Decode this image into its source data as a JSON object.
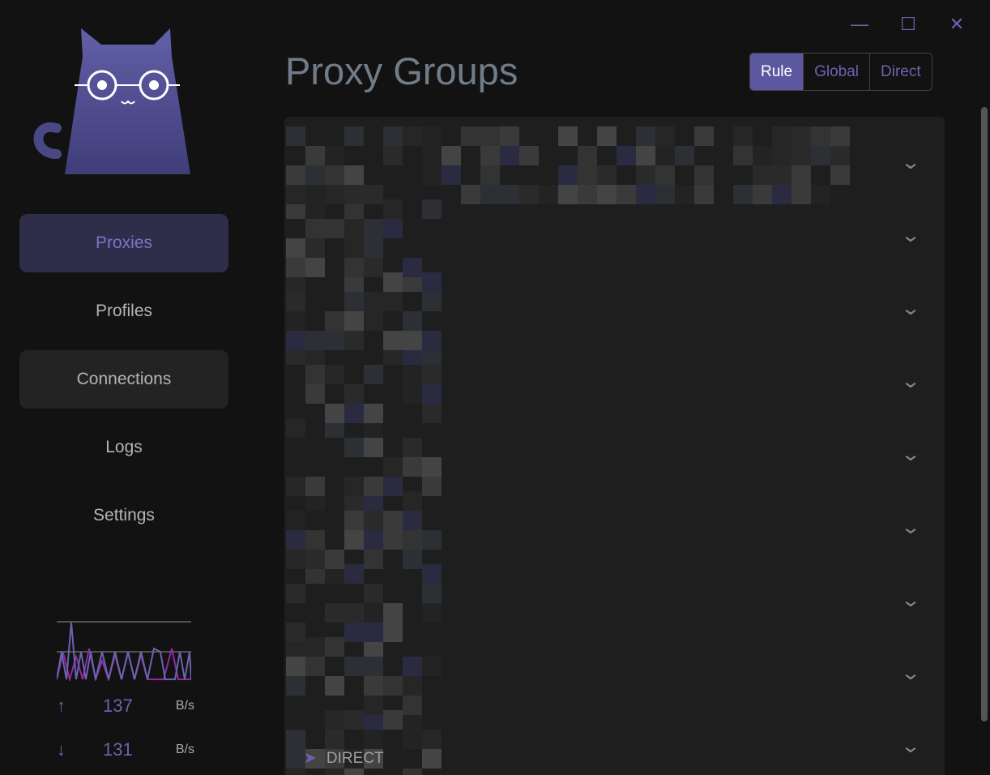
{
  "window": {
    "controls": [
      "minimize",
      "maximize",
      "close"
    ]
  },
  "sidebar": {
    "items": [
      {
        "label": "Proxies",
        "state": "active"
      },
      {
        "label": "Profiles",
        "state": "normal"
      },
      {
        "label": "Connections",
        "state": "hover"
      },
      {
        "label": "Logs",
        "state": "normal"
      },
      {
        "label": "Settings",
        "state": "normal"
      }
    ]
  },
  "traffic": {
    "upload": {
      "value": "137",
      "unit": "B/s"
    },
    "download": {
      "value": "131",
      "unit": "B/s"
    }
  },
  "header": {
    "title": "Proxy Groups",
    "modes": [
      {
        "label": "Rule",
        "selected": true
      },
      {
        "label": "Global",
        "selected": false
      },
      {
        "label": "Direct",
        "selected": false
      }
    ]
  },
  "groups_count_visible": 9,
  "footer_item": {
    "label": "DIRECT",
    "icon": "send-icon"
  },
  "colors": {
    "accent": "#5b58a0",
    "accent_text": "#6a64b0",
    "background": "#121212",
    "panel": "#1e1e1e"
  }
}
